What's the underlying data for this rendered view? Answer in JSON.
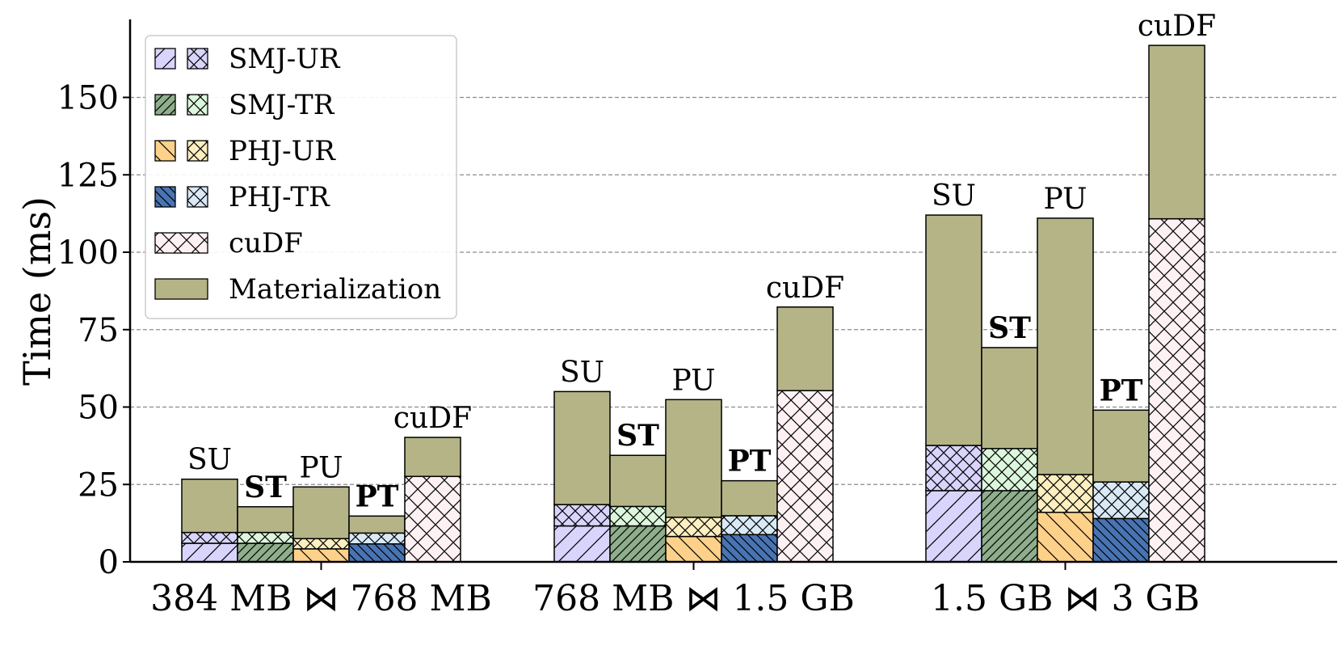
{
  "chart_data": {
    "type": "bar",
    "subtype": "stacked-grouped",
    "ylabel": "Time (ms)",
    "xlabel": "",
    "ylim": [
      0,
      175
    ],
    "yticks": [
      0,
      25,
      50,
      75,
      100,
      125,
      150
    ],
    "grid": "horizontal-dashed",
    "legend_position": "top-left",
    "colors": {
      "SMJ-UR": "#d8d4fb",
      "SMJ-TR": "#8fae8c",
      "SMJ-TR-light": "#dcf7dc",
      "PHJ-UR": "#fdd18a",
      "PHJ-UR-light": "#fdefc0",
      "PHJ-TR": "#4874b3",
      "PHJ-TR-light": "#d9e9f6",
      "cuDF": "#fdf1f3",
      "Materialization": "#b4b487",
      "edge": "#000000"
    },
    "legend": [
      {
        "name": "SMJ-UR",
        "swatches": [
          "SMJ-UR:diag",
          "SMJ-UR:cross"
        ]
      },
      {
        "name": "SMJ-TR",
        "swatches": [
          "SMJ-TR:dense",
          "SMJ-TR-light:cross"
        ]
      },
      {
        "name": "PHJ-UR",
        "swatches": [
          "PHJ-UR:back",
          "PHJ-UR-light:cross"
        ]
      },
      {
        "name": "PHJ-TR",
        "swatches": [
          "PHJ-TR:dense-back",
          "PHJ-TR-light:cross"
        ]
      },
      {
        "name": "cuDF",
        "swatches": [
          "cuDF:cross-wide"
        ]
      },
      {
        "name": "Materialization",
        "swatches": [
          "Materialization:solid"
        ]
      }
    ],
    "groups": [
      {
        "label": "384 MB ⋈ 768 MB",
        "bars": [
          {
            "label": "SU",
            "bold": false,
            "segments": [
              {
                "series": "SMJ-UR",
                "pattern": "diag",
                "color": "SMJ-UR",
                "value": 6
              },
              {
                "series": "SMJ-UR",
                "pattern": "cross",
                "color": "SMJ-UR",
                "value": 3.5
              },
              {
                "series": "Materialization",
                "pattern": "solid",
                "color": "Materialization",
                "value": 17.2
              }
            ]
          },
          {
            "label": "ST",
            "bold": true,
            "segments": [
              {
                "series": "SMJ-TR",
                "pattern": "dense",
                "color": "SMJ-TR",
                "value": 6
              },
              {
                "series": "SMJ-TR",
                "pattern": "cross",
                "color": "SMJ-TR-light",
                "value": 3.5
              },
              {
                "series": "Materialization",
                "pattern": "solid",
                "color": "Materialization",
                "value": 8.3
              }
            ]
          },
          {
            "label": "PU",
            "bold": false,
            "segments": [
              {
                "series": "PHJ-UR",
                "pattern": "back",
                "color": "PHJ-UR",
                "value": 4.2
              },
              {
                "series": "PHJ-UR",
                "pattern": "cross",
                "color": "PHJ-UR-light",
                "value": 3.3
              },
              {
                "series": "Materialization",
                "pattern": "solid",
                "color": "Materialization",
                "value": 16.7
              }
            ]
          },
          {
            "label": "PT",
            "bold": true,
            "segments": [
              {
                "series": "PHJ-TR",
                "pattern": "dense-back",
                "color": "PHJ-TR",
                "value": 5.8
              },
              {
                "series": "PHJ-TR",
                "pattern": "cross",
                "color": "PHJ-TR-light",
                "value": 3.5
              },
              {
                "series": "Materialization",
                "pattern": "solid",
                "color": "Materialization",
                "value": 5.5
              }
            ]
          },
          {
            "label": "cuDF",
            "bold": false,
            "segments": [
              {
                "series": "cuDF",
                "pattern": "cross-wide",
                "color": "cuDF",
                "value": 27.6
              },
              {
                "series": "Materialization",
                "pattern": "solid",
                "color": "Materialization",
                "value": 12.6
              }
            ]
          }
        ]
      },
      {
        "label": "768 MB ⋈ 1.5 GB",
        "bars": [
          {
            "label": "SU",
            "bold": false,
            "segments": [
              {
                "series": "SMJ-UR",
                "pattern": "diag",
                "color": "SMJ-UR",
                "value": 11.6
              },
              {
                "series": "SMJ-UR",
                "pattern": "cross",
                "color": "SMJ-UR",
                "value": 6.9
              },
              {
                "series": "Materialization",
                "pattern": "solid",
                "color": "Materialization",
                "value": 36.5
              }
            ]
          },
          {
            "label": "ST",
            "bold": true,
            "segments": [
              {
                "series": "SMJ-TR",
                "pattern": "dense",
                "color": "SMJ-TR",
                "value": 11.6
              },
              {
                "series": "SMJ-TR",
                "pattern": "cross",
                "color": "SMJ-TR-light",
                "value": 6.3
              },
              {
                "series": "Materialization",
                "pattern": "solid",
                "color": "Materialization",
                "value": 16.5
              }
            ]
          },
          {
            "label": "PU",
            "bold": false,
            "segments": [
              {
                "series": "PHJ-UR",
                "pattern": "back",
                "color": "PHJ-UR",
                "value": 8.2
              },
              {
                "series": "PHJ-UR",
                "pattern": "cross",
                "color": "PHJ-UR-light",
                "value": 6.2
              },
              {
                "series": "Materialization",
                "pattern": "solid",
                "color": "Materialization",
                "value": 38
              }
            ]
          },
          {
            "label": "PT",
            "bold": true,
            "segments": [
              {
                "series": "PHJ-TR",
                "pattern": "dense-back",
                "color": "PHJ-TR",
                "value": 8.8
              },
              {
                "series": "PHJ-TR",
                "pattern": "cross",
                "color": "PHJ-TR-light",
                "value": 6.1
              },
              {
                "series": "Materialization",
                "pattern": "solid",
                "color": "Materialization",
                "value": 11.3
              }
            ]
          },
          {
            "label": "cuDF",
            "bold": false,
            "segments": [
              {
                "series": "cuDF",
                "pattern": "cross-wide",
                "color": "cuDF",
                "value": 55.3
              },
              {
                "series": "Materialization",
                "pattern": "solid",
                "color": "Materialization",
                "value": 27
              }
            ]
          }
        ]
      },
      {
        "label": "1.5 GB ⋈ 3 GB",
        "bars": [
          {
            "label": "SU",
            "bold": false,
            "segments": [
              {
                "series": "SMJ-UR",
                "pattern": "diag",
                "color": "SMJ-UR",
                "value": 23
              },
              {
                "series": "SMJ-UR",
                "pattern": "cross",
                "color": "SMJ-UR",
                "value": 14.6
              },
              {
                "series": "Materialization",
                "pattern": "solid",
                "color": "Materialization",
                "value": 74.4
              }
            ]
          },
          {
            "label": "ST",
            "bold": true,
            "segments": [
              {
                "series": "SMJ-TR",
                "pattern": "dense",
                "color": "SMJ-TR",
                "value": 23
              },
              {
                "series": "SMJ-TR",
                "pattern": "cross",
                "color": "SMJ-TR-light",
                "value": 13.6
              },
              {
                "series": "Materialization",
                "pattern": "solid",
                "color": "Materialization",
                "value": 32.6
              }
            ]
          },
          {
            "label": "PU",
            "bold": false,
            "segments": [
              {
                "series": "PHJ-UR",
                "pattern": "back",
                "color": "PHJ-UR",
                "value": 16
              },
              {
                "series": "PHJ-UR",
                "pattern": "cross",
                "color": "PHJ-UR-light",
                "value": 12.2
              },
              {
                "series": "Materialization",
                "pattern": "solid",
                "color": "Materialization",
                "value": 82.8
              }
            ]
          },
          {
            "label": "PT",
            "bold": true,
            "segments": [
              {
                "series": "PHJ-TR",
                "pattern": "dense-back",
                "color": "PHJ-TR",
                "value": 14
              },
              {
                "series": "PHJ-TR",
                "pattern": "cross",
                "color": "PHJ-TR-light",
                "value": 11.8
              },
              {
                "series": "Materialization",
                "pattern": "solid",
                "color": "Materialization",
                "value": 23.2
              }
            ]
          },
          {
            "label": "cuDF",
            "bold": false,
            "segments": [
              {
                "series": "cuDF",
                "pattern": "cross-wide",
                "color": "cuDF",
                "value": 110.8
              },
              {
                "series": "Materialization",
                "pattern": "solid",
                "color": "Materialization",
                "value": 56
              }
            ]
          }
        ]
      }
    ]
  }
}
